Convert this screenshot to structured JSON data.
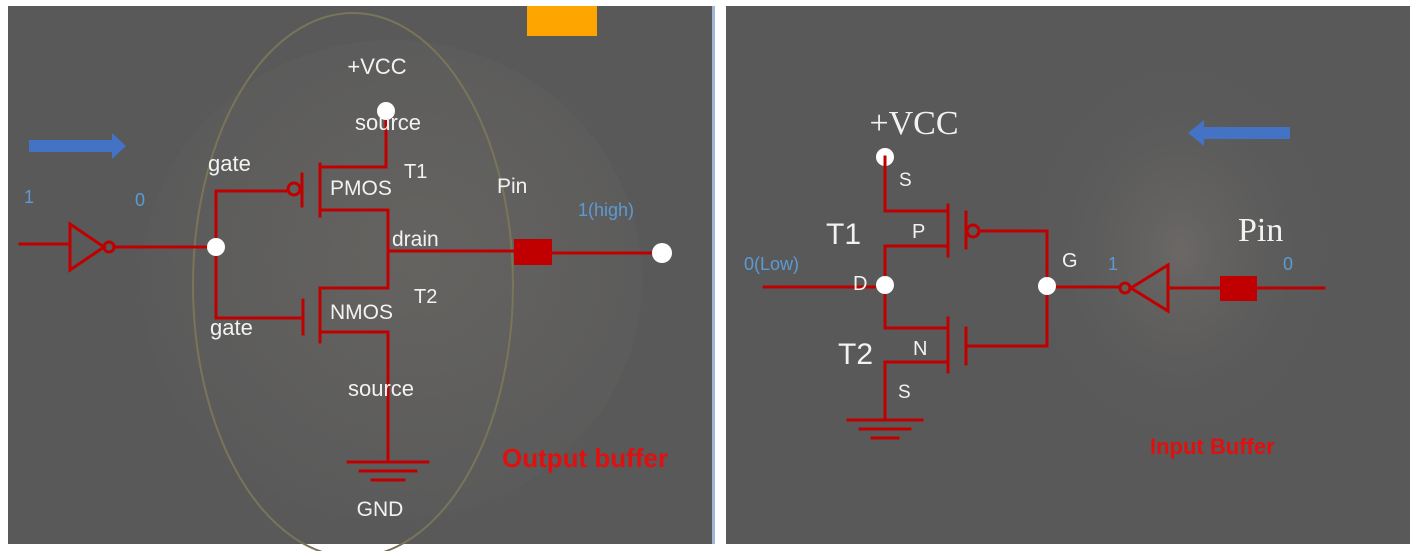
{
  "output_panel": {
    "vcc": "+VCC",
    "source_top": "source",
    "t1": "T1",
    "gate_top": "gate",
    "pmos": "PMOS",
    "pin": "Pin",
    "drain": "drain",
    "high": "1(high)",
    "gate_bottom": "gate",
    "nmos": "NMOS",
    "t2": "T2",
    "source_bottom": "source",
    "gnd": "GND",
    "in_one": "1",
    "in_zero": "0",
    "title": "Output buffer",
    "arrow_color": "#4472c4",
    "accent_color": "#ffa500"
  },
  "input_panel": {
    "vcc": "+VCC",
    "s_top": "S",
    "t1": "T1",
    "p": "P",
    "pin": "Pin",
    "low": "0(Low)",
    "d": "D",
    "g": "G",
    "one": "1",
    "zero": "0",
    "t2": "T2",
    "n": "N",
    "s_bottom": "S",
    "title": "Input Buffer",
    "arrow_color": "#4472c4"
  }
}
